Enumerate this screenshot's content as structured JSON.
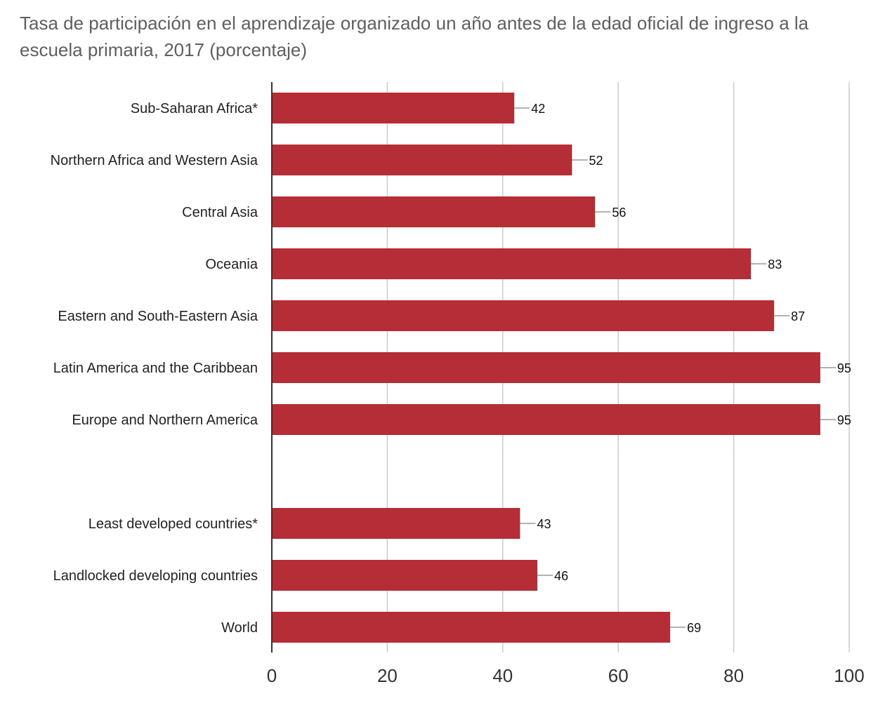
{
  "chart_data": {
    "type": "bar",
    "orientation": "horizontal",
    "title": "Tasa de participación en el aprendizaje organizado un año antes de la edad oficial de ingreso a la escuela primaria, 2017 (porcentaje)",
    "xlabel": "",
    "ylabel": "",
    "xlim": [
      0,
      100
    ],
    "ticks": [
      0,
      20,
      40,
      60,
      80,
      100
    ],
    "grid": true,
    "bar_color": "#b52d36",
    "groups": [
      {
        "categories": [
          "Sub-Saharan Africa*",
          "Northern Africa and Western Asia",
          "Central Asia",
          "Oceania",
          "Eastern and South-Eastern Asia",
          "Latin America and the Caribbean",
          "Europe and Northern America"
        ],
        "values": [
          42,
          52,
          56,
          83,
          87,
          95,
          95
        ]
      },
      {
        "categories": [
          "Least developed countries*",
          "Landlocked developing countries",
          "World"
        ],
        "values": [
          43,
          46,
          69
        ]
      }
    ]
  }
}
